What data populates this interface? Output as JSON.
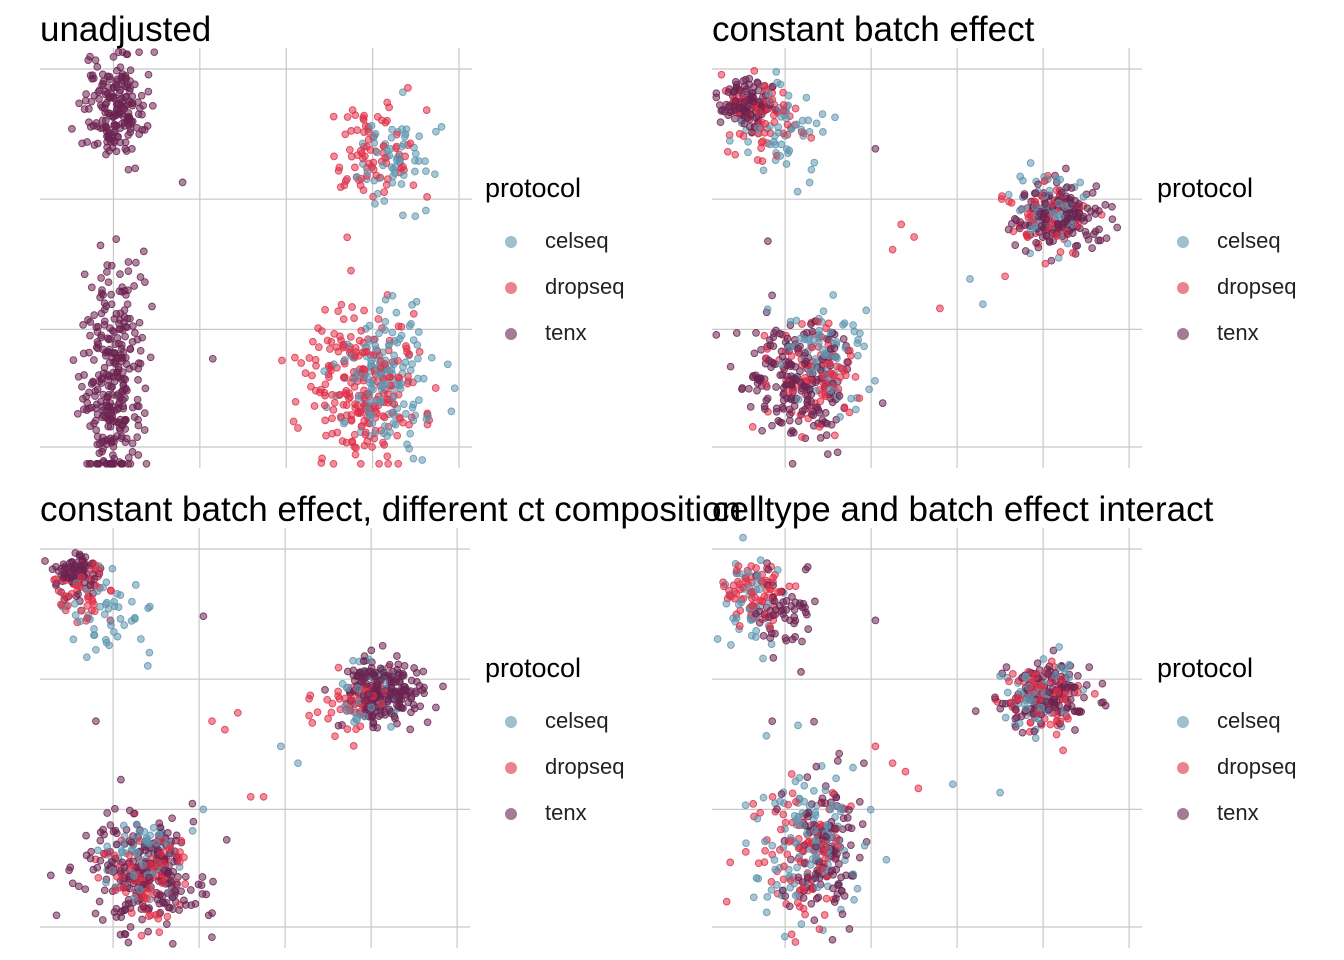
{
  "colors": {
    "celseq": "#5E95AE",
    "dropseq": "#E03048",
    "tenx": "#6B2350",
    "grid": "#C8C8C8"
  },
  "legend": {
    "title": "protocol",
    "items": [
      {
        "key": "celseq",
        "label": "celseq"
      },
      {
        "key": "dropseq",
        "label": "dropseq"
      },
      {
        "key": "tenx",
        "label": "tenx"
      }
    ]
  },
  "chart_data": [
    {
      "type": "scatter",
      "title": "unadjusted",
      "grid": true,
      "legend_position": "right",
      "clusters": [
        {
          "series": "tenx",
          "cx": 0.17,
          "cy": 0.86,
          "sx": 0.035,
          "sy": 0.06,
          "n": 190
        },
        {
          "series": "tenx",
          "cx": 0.17,
          "cy": 0.21,
          "sx": 0.035,
          "sy": 0.13,
          "n": 300
        },
        {
          "series": "dropseq",
          "cx": 0.77,
          "cy": 0.76,
          "sx": 0.05,
          "sy": 0.07,
          "n": 80
        },
        {
          "series": "celseq",
          "cx": 0.82,
          "cy": 0.73,
          "sx": 0.045,
          "sy": 0.06,
          "n": 60
        },
        {
          "series": "dropseq",
          "cx": 0.74,
          "cy": 0.19,
          "sx": 0.065,
          "sy": 0.09,
          "n": 230
        },
        {
          "series": "celseq",
          "cx": 0.8,
          "cy": 0.21,
          "sx": 0.055,
          "sy": 0.08,
          "n": 150
        }
      ],
      "outliers": [
        {
          "series": "tenx",
          "x": 0.33,
          "y": 0.68
        },
        {
          "series": "tenx",
          "x": 0.14,
          "y": 0.53
        },
        {
          "series": "tenx",
          "x": 0.12,
          "y": 0.43
        },
        {
          "series": "tenx",
          "x": 0.4,
          "y": 0.26
        },
        {
          "series": "celseq",
          "x": 0.96,
          "y": 0.19
        },
        {
          "series": "dropseq",
          "x": 0.72,
          "y": 0.47
        }
      ]
    },
    {
      "type": "scatter",
      "title": "constant batch effect",
      "grid": true,
      "legend_position": "right",
      "clusters": [
        {
          "series": "tenx",
          "cx": 0.08,
          "cy": 0.87,
          "sx": 0.03,
          "sy": 0.03,
          "n": 110
        },
        {
          "series": "dropseq",
          "cx": 0.12,
          "cy": 0.84,
          "sx": 0.04,
          "sy": 0.04,
          "n": 70
        },
        {
          "series": "celseq",
          "cx": 0.16,
          "cy": 0.8,
          "sx": 0.05,
          "sy": 0.06,
          "n": 60
        },
        {
          "series": "tenx",
          "cx": 0.81,
          "cy": 0.6,
          "sx": 0.05,
          "sy": 0.04,
          "n": 170
        },
        {
          "series": "dropseq",
          "cx": 0.78,
          "cy": 0.6,
          "sx": 0.04,
          "sy": 0.04,
          "n": 70
        },
        {
          "series": "celseq",
          "cx": 0.79,
          "cy": 0.62,
          "sx": 0.04,
          "sy": 0.04,
          "n": 60
        },
        {
          "series": "tenx",
          "cx": 0.2,
          "cy": 0.2,
          "sx": 0.06,
          "sy": 0.07,
          "n": 200
        },
        {
          "series": "dropseq",
          "cx": 0.24,
          "cy": 0.22,
          "sx": 0.05,
          "sy": 0.06,
          "n": 90
        },
        {
          "series": "celseq",
          "cx": 0.27,
          "cy": 0.27,
          "sx": 0.05,
          "sy": 0.06,
          "n": 80
        }
      ],
      "outliers": [
        {
          "series": "dropseq",
          "x": 0.44,
          "y": 0.58
        },
        {
          "series": "dropseq",
          "x": 0.47,
          "y": 0.55
        },
        {
          "series": "dropseq",
          "x": 0.42,
          "y": 0.52
        },
        {
          "series": "celseq",
          "x": 0.6,
          "y": 0.45
        },
        {
          "series": "celseq",
          "x": 0.63,
          "y": 0.39
        },
        {
          "series": "tenx",
          "x": 0.38,
          "y": 0.76
        },
        {
          "series": "tenx",
          "x": 0.13,
          "y": 0.54
        },
        {
          "series": "dropseq",
          "x": 0.53,
          "y": 0.38
        }
      ]
    },
    {
      "type": "scatter",
      "title": "constant batch effect, different ct composition",
      "grid": true,
      "legend_position": "right",
      "clusters": [
        {
          "series": "tenx",
          "cx": 0.08,
          "cy": 0.89,
          "sx": 0.025,
          "sy": 0.025,
          "n": 80
        },
        {
          "series": "dropseq",
          "cx": 0.1,
          "cy": 0.85,
          "sx": 0.035,
          "sy": 0.035,
          "n": 50
        },
        {
          "series": "celseq",
          "cx": 0.16,
          "cy": 0.8,
          "sx": 0.05,
          "sy": 0.06,
          "n": 50
        },
        {
          "series": "tenx",
          "cx": 0.8,
          "cy": 0.61,
          "sx": 0.05,
          "sy": 0.04,
          "n": 220
        },
        {
          "series": "dropseq",
          "cx": 0.74,
          "cy": 0.59,
          "sx": 0.04,
          "sy": 0.035,
          "n": 60
        },
        {
          "series": "celseq",
          "cx": 0.77,
          "cy": 0.6,
          "sx": 0.04,
          "sy": 0.04,
          "n": 50
        },
        {
          "series": "tenx",
          "cx": 0.24,
          "cy": 0.17,
          "sx": 0.07,
          "sy": 0.07,
          "n": 230
        },
        {
          "series": "dropseq",
          "cx": 0.25,
          "cy": 0.18,
          "sx": 0.05,
          "sy": 0.05,
          "n": 100
        },
        {
          "series": "celseq",
          "cx": 0.24,
          "cy": 0.22,
          "sx": 0.05,
          "sy": 0.05,
          "n": 80
        }
      ],
      "outliers": [
        {
          "series": "dropseq",
          "x": 0.4,
          "y": 0.54
        },
        {
          "series": "dropseq",
          "x": 0.43,
          "y": 0.52
        },
        {
          "series": "dropseq",
          "x": 0.46,
          "y": 0.56
        },
        {
          "series": "dropseq",
          "x": 0.49,
          "y": 0.36
        },
        {
          "series": "dropseq",
          "x": 0.52,
          "y": 0.36
        },
        {
          "series": "celseq",
          "x": 0.56,
          "y": 0.48
        },
        {
          "series": "celseq",
          "x": 0.6,
          "y": 0.44
        },
        {
          "series": "tenx",
          "x": 0.38,
          "y": 0.79
        },
        {
          "series": "tenx",
          "x": 0.13,
          "y": 0.54
        },
        {
          "series": "celseq",
          "x": 0.13,
          "y": 0.71
        }
      ]
    },
    {
      "type": "scatter",
      "title": "celltype and batch effect interact",
      "grid": true,
      "legend_position": "right",
      "clusters": [
        {
          "series": "dropseq",
          "cx": 0.1,
          "cy": 0.85,
          "sx": 0.035,
          "sy": 0.045,
          "n": 70
        },
        {
          "series": "celseq",
          "cx": 0.1,
          "cy": 0.83,
          "sx": 0.04,
          "sy": 0.06,
          "n": 50
        },
        {
          "series": "tenx",
          "cx": 0.16,
          "cy": 0.81,
          "sx": 0.04,
          "sy": 0.05,
          "n": 60
        },
        {
          "series": "tenx",
          "cx": 0.78,
          "cy": 0.6,
          "sx": 0.05,
          "sy": 0.04,
          "n": 130
        },
        {
          "series": "dropseq",
          "cx": 0.77,
          "cy": 0.59,
          "sx": 0.045,
          "sy": 0.04,
          "n": 90
        },
        {
          "series": "celseq",
          "cx": 0.77,
          "cy": 0.6,
          "sx": 0.045,
          "sy": 0.04,
          "n": 70
        },
        {
          "series": "celseq",
          "cx": 0.22,
          "cy": 0.24,
          "sx": 0.06,
          "sy": 0.09,
          "n": 120
        },
        {
          "series": "tenx",
          "cx": 0.26,
          "cy": 0.24,
          "sx": 0.045,
          "sy": 0.09,
          "n": 130
        },
        {
          "series": "dropseq",
          "cx": 0.21,
          "cy": 0.22,
          "sx": 0.05,
          "sy": 0.08,
          "n": 100
        }
      ],
      "outliers": [
        {
          "series": "dropseq",
          "x": 0.38,
          "y": 0.48
        },
        {
          "series": "dropseq",
          "x": 0.42,
          "y": 0.44
        },
        {
          "series": "dropseq",
          "x": 0.45,
          "y": 0.42
        },
        {
          "series": "dropseq",
          "x": 0.48,
          "y": 0.38
        },
        {
          "series": "celseq",
          "x": 0.56,
          "y": 0.39
        },
        {
          "series": "celseq",
          "x": 0.67,
          "y": 0.37
        },
        {
          "series": "tenx",
          "x": 0.38,
          "y": 0.78
        },
        {
          "series": "tenx",
          "x": 0.14,
          "y": 0.54
        },
        {
          "series": "celseq",
          "x": 0.2,
          "y": 0.53
        }
      ]
    }
  ]
}
